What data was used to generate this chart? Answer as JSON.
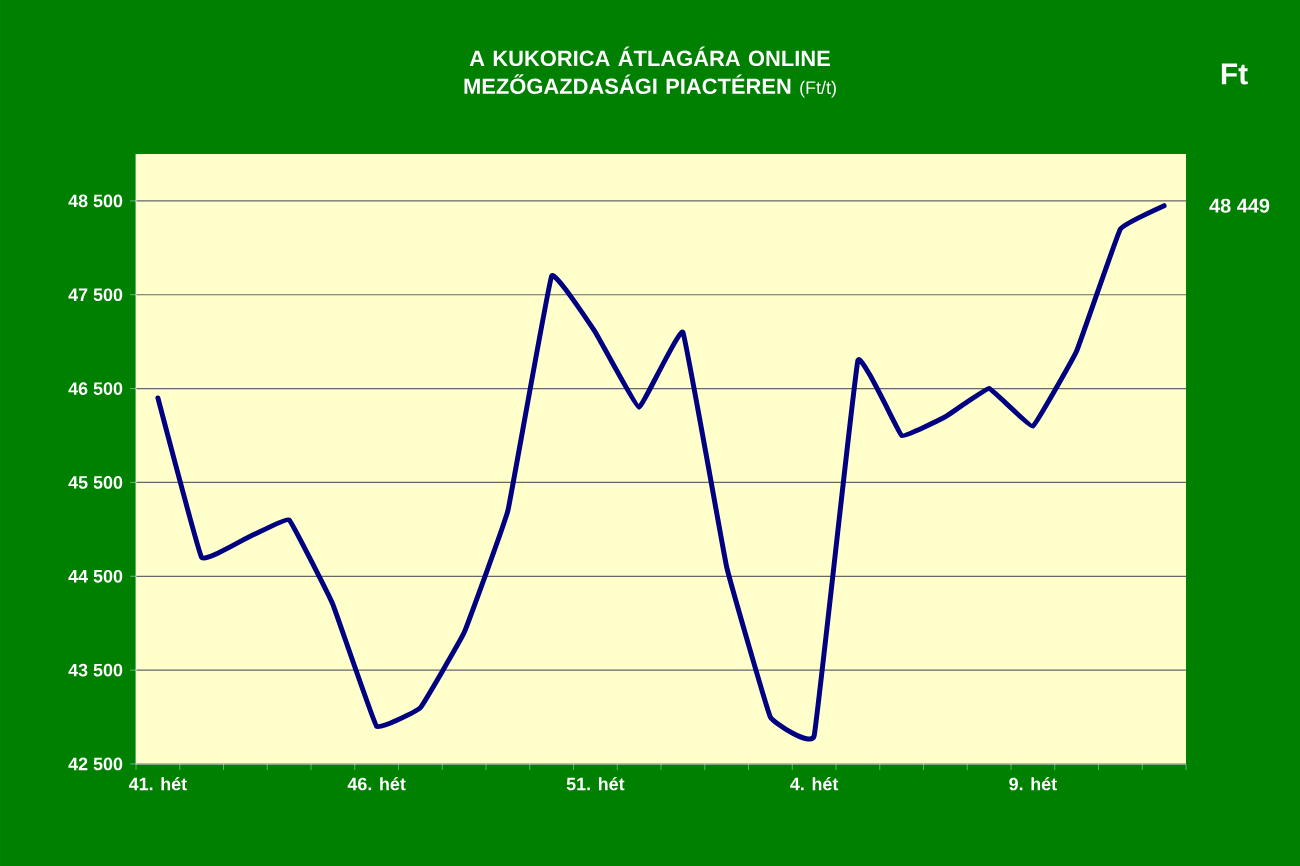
{
  "chart_data": {
    "type": "line",
    "title": "A KUKORICA ÁTLAGÁRA ONLINE MEZŐGAZDASÁGI PIACTÉREN",
    "subtitle": "(Ft/t)",
    "ylabel": "Ft",
    "categories": [
      "41. hét",
      null,
      null,
      null,
      null,
      "46. hét",
      null,
      null,
      null,
      null,
      "51. hét",
      null,
      null,
      null,
      null,
      "4. hét",
      null,
      null,
      null,
      null,
      "9. hét",
      null,
      null,
      null
    ],
    "series": [
      {
        "color": "#000080",
        "values": [
          46400,
          44700,
          44900,
          45100,
          44200,
          42900,
          43100,
          43900,
          45200,
          47700,
          47100,
          46300,
          47100,
          44600,
          43000,
          42800,
          46800,
          46000,
          46200,
          46500,
          46100,
          46900,
          48200,
          48449
        ]
      }
    ],
    "ylim": [
      42500,
      49000
    ],
    "yticks": [
      {
        "value": 42500,
        "label": "42 500"
      },
      {
        "value": 43500,
        "label": "43 500"
      },
      {
        "value": 44500,
        "label": "44 500"
      },
      {
        "value": 45500,
        "label": "45 500"
      },
      {
        "value": 46500,
        "label": "46 500"
      },
      {
        "value": 47500,
        "label": "47 500"
      },
      {
        "value": 48500,
        "label": "48 500"
      }
    ],
    "grid": "y",
    "annotations": [
      "48 449"
    ]
  }
}
